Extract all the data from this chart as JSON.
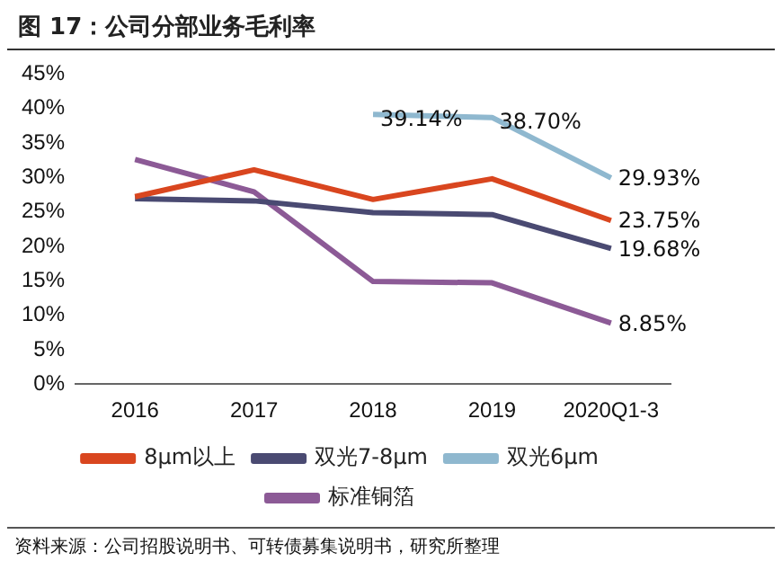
{
  "chart_data": {
    "type": "line",
    "title": "图 17：公司分部业务毛利率",
    "categories": [
      "2016",
      "2017",
      "2018",
      "2019",
      "2020Q1-3"
    ],
    "series": [
      {
        "name": "8μm以上",
        "color": "#d9461f",
        "values": [
          27.2,
          31.1,
          26.8,
          29.8,
          23.75
        ],
        "value_labels": [
          null,
          null,
          null,
          null,
          "23.75%"
        ]
      },
      {
        "name": "双光7-8μm",
        "color": "#4a4a72",
        "values": [
          26.9,
          26.6,
          24.9,
          24.6,
          19.68
        ],
        "value_labels": [
          null,
          null,
          null,
          null,
          "19.68%"
        ]
      },
      {
        "name": "双光6μm",
        "color": "#8fb8cf",
        "values": [
          null,
          null,
          39.14,
          38.7,
          29.93
        ],
        "value_labels": [
          null,
          null,
          "39.14%",
          "38.70%",
          "29.93%"
        ]
      },
      {
        "name": "标准铜箔",
        "color": "#8c5a96",
        "values": [
          32.6,
          27.9,
          14.9,
          14.7,
          8.85
        ],
        "value_labels": [
          null,
          null,
          null,
          null,
          "8.85%"
        ]
      }
    ],
    "ylim": [
      0,
      45
    ],
    "yticks": [
      {
        "value": 0,
        "label": "0%"
      },
      {
        "value": 5,
        "label": "5%"
      },
      {
        "value": 10,
        "label": "10%"
      },
      {
        "value": 15,
        "label": "15%"
      },
      {
        "value": 20,
        "label": "20%"
      },
      {
        "value": 25,
        "label": "25%"
      },
      {
        "value": 30,
        "label": "30%"
      },
      {
        "value": 35,
        "label": "35%"
      },
      {
        "value": 40,
        "label": "40%"
      },
      {
        "value": 45,
        "label": "45%"
      }
    ],
    "grid": false,
    "legend": "bottom",
    "marker": "none",
    "line_style": "solid",
    "annotations": [
      "资料来源：公司招股说明书、可转债募集说明书，研究所整理"
    ]
  }
}
